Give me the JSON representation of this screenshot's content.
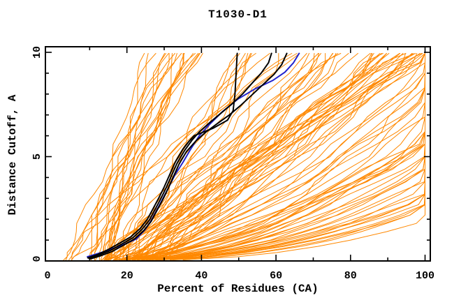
{
  "title": "T1030-D1",
  "colors": {
    "background": "#ffffff",
    "frame": "#000000",
    "predictions": "#ff8800",
    "reference": "#000000",
    "highlight": "#2222cc"
  },
  "chart_data": {
    "type": "line",
    "title": "T1030-D1",
    "xlabel": "Percent of Residues (CA)",
    "ylabel": "Distance Cutoff, A",
    "xlim": [
      0,
      100
    ],
    "ylim": [
      0,
      10
    ],
    "x_ticks": [
      0,
      20,
      40,
      60,
      80,
      100
    ],
    "x_minor_step": 10,
    "y_ticks": [
      0,
      5,
      10
    ],
    "y_minor_step": 1,
    "grid": "off",
    "legend": "none",
    "highlighted_series": [
      {
        "name": "reference-model-1",
        "color": "#000000",
        "points": [
          [
            9.5,
            0.15
          ],
          [
            12,
            0.3
          ],
          [
            15,
            0.55
          ],
          [
            18,
            0.85
          ],
          [
            21,
            1.15
          ],
          [
            23.5,
            1.55
          ],
          [
            25.5,
            2.0
          ],
          [
            27,
            2.5
          ],
          [
            28.5,
            3.0
          ],
          [
            30,
            3.55
          ],
          [
            31.5,
            4.15
          ],
          [
            33,
            4.75
          ],
          [
            35,
            5.35
          ],
          [
            36.5,
            5.7
          ],
          [
            38,
            6.0
          ],
          [
            43,
            6.35
          ],
          [
            47,
            6.75
          ],
          [
            48.5,
            7.2
          ],
          [
            49,
            8.0
          ],
          [
            49.3,
            9.0
          ],
          [
            49.6,
            9.95
          ]
        ]
      },
      {
        "name": "reference-model-2",
        "color": "#000000",
        "points": [
          [
            9.8,
            0.12
          ],
          [
            12.5,
            0.28
          ],
          [
            15.5,
            0.5
          ],
          [
            18.5,
            0.8
          ],
          [
            21.5,
            1.1
          ],
          [
            24,
            1.5
          ],
          [
            26,
            1.95
          ],
          [
            27.5,
            2.45
          ],
          [
            29,
            2.95
          ],
          [
            30.5,
            3.5
          ],
          [
            32,
            4.1
          ],
          [
            33.5,
            4.7
          ],
          [
            35.5,
            5.3
          ],
          [
            37.5,
            5.8
          ],
          [
            39.5,
            6.2
          ],
          [
            42,
            6.6
          ],
          [
            45,
            7.05
          ],
          [
            48,
            7.5
          ],
          [
            51,
            8.0
          ],
          [
            53.5,
            8.5
          ],
          [
            56,
            9.0
          ],
          [
            58,
            9.5
          ],
          [
            58.8,
            9.95
          ]
        ]
      },
      {
        "name": "reference-model-3",
        "color": "#000000",
        "points": [
          [
            10.2,
            0.1
          ],
          [
            13,
            0.25
          ],
          [
            16,
            0.45
          ],
          [
            19,
            0.75
          ],
          [
            22,
            1.05
          ],
          [
            24.5,
            1.45
          ],
          [
            26.5,
            1.9
          ],
          [
            28,
            2.4
          ],
          [
            29.5,
            2.9
          ],
          [
            31,
            3.45
          ],
          [
            32.5,
            4.05
          ],
          [
            34,
            4.65
          ],
          [
            36,
            5.25
          ],
          [
            38.5,
            5.75
          ],
          [
            41,
            6.15
          ],
          [
            44,
            6.55
          ],
          [
            47.5,
            7.0
          ],
          [
            50.5,
            7.45
          ],
          [
            53.5,
            7.95
          ],
          [
            56.5,
            8.45
          ],
          [
            59.5,
            8.95
          ],
          [
            61.5,
            9.4
          ],
          [
            62.9,
            9.95
          ]
        ]
      },
      {
        "name": "highlight-model-blue",
        "color": "#2222cc",
        "points": [
          [
            9.4,
            0.2
          ],
          [
            14,
            0.45
          ],
          [
            18.7,
            0.75
          ],
          [
            22.5,
            1.05
          ],
          [
            24.9,
            1.5
          ],
          [
            26.4,
            1.9
          ],
          [
            27.9,
            2.4
          ],
          [
            29.4,
            2.9
          ],
          [
            31.1,
            3.5
          ],
          [
            32.8,
            4.1
          ],
          [
            35.1,
            4.75
          ],
          [
            36.9,
            5.3
          ],
          [
            39.4,
            6.0
          ],
          [
            42.2,
            6.55
          ],
          [
            45.6,
            7.15
          ],
          [
            49.7,
            7.75
          ],
          [
            54.4,
            8.25
          ],
          [
            59.1,
            8.65
          ],
          [
            62.4,
            9.05
          ],
          [
            64.7,
            9.5
          ],
          [
            66.2,
            9.95
          ]
        ]
      }
    ],
    "background_series": {
      "name": "prediction-models",
      "color": "#ff8800",
      "count": 112,
      "seed": 1030,
      "c_samples": [
        0.05,
        0.2,
        0.4,
        0.7,
        1.0,
        1.4,
        1.8,
        2.2,
        2.7,
        3.2,
        3.8,
        4.4,
        5.0,
        5.6,
        6.2,
        6.9,
        7.6,
        8.3,
        9.0,
        9.5,
        9.95
      ],
      "groups": [
        {
          "name": "steep-left",
          "count": 17,
          "p0": [
            9,
            19
          ],
          "pf": [
            22,
            40
          ],
          "k": [
            0.85,
            1.6
          ],
          "noise": 1.4
        },
        {
          "name": "mid-diagonal",
          "count": 30,
          "p0": [
            11,
            22
          ],
          "pf": [
            44,
            90
          ],
          "k": [
            0.6,
            1.15
          ],
          "noise": 2.2
        },
        {
          "name": "slow-fan",
          "count": 27,
          "p0": [
            10,
            22
          ],
          "pf": [
            95,
            148
          ],
          "k": [
            0.45,
            0.75
          ],
          "noise": 1.8
        },
        {
          "name": "bottom-hug",
          "count": 14,
          "p0": [
            8,
            18
          ],
          "pf": [
            140,
            178
          ],
          "k": [
            0.38,
            0.52
          ],
          "noise": 1.0
        },
        {
          "name": "early-start",
          "count": 6,
          "p0": [
            2,
            8
          ],
          "pf": [
            24,
            70
          ],
          "k": [
            0.7,
            1.3
          ],
          "noise": 1.4
        },
        {
          "name": "top-right",
          "count": 18,
          "p0": [
            14,
            30
          ],
          "pf": [
            86,
            103
          ],
          "k": [
            0.75,
            1.35
          ],
          "noise": 2.4
        }
      ]
    }
  }
}
